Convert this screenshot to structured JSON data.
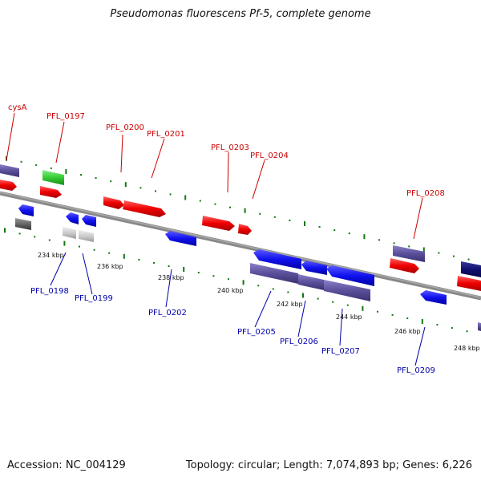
{
  "title": "Pseudomonas fluorescens Pf-5, complete genome",
  "footer": {
    "accession": "Accession: NC_004129",
    "topology": "Topology: circular; Length: 7,074,893 bp; Genes: 6,226"
  },
  "colors": {
    "forward": "#ee0000",
    "reverse": "#0000ee",
    "other": "#5a4f9a",
    "rna": "#33cc33",
    "pseudo": "#cccccc",
    "backbone": "#888888",
    "tick": "#117711",
    "label_fwd": "#cc0000",
    "label_rev": "#0000aa"
  },
  "kbp_labels": [
    "234 kbp",
    "236 kbp",
    "238 kbp",
    "240 kbp",
    "242 kbp",
    "244 kbp",
    "246 kbp",
    "248 kbp"
  ],
  "gene_labels": {
    "forward": [
      "cysA",
      "PFL_0197",
      "PFL_0200",
      "PFL_0201",
      "PFL_0203",
      "PFL_0204",
      "PFL_0208"
    ],
    "reverse": [
      "PFL_0198",
      "PFL_0199",
      "PFL_0202",
      "PFL_0205",
      "PFL_0206",
      "PFL_0207",
      "PFL_0209"
    ]
  }
}
